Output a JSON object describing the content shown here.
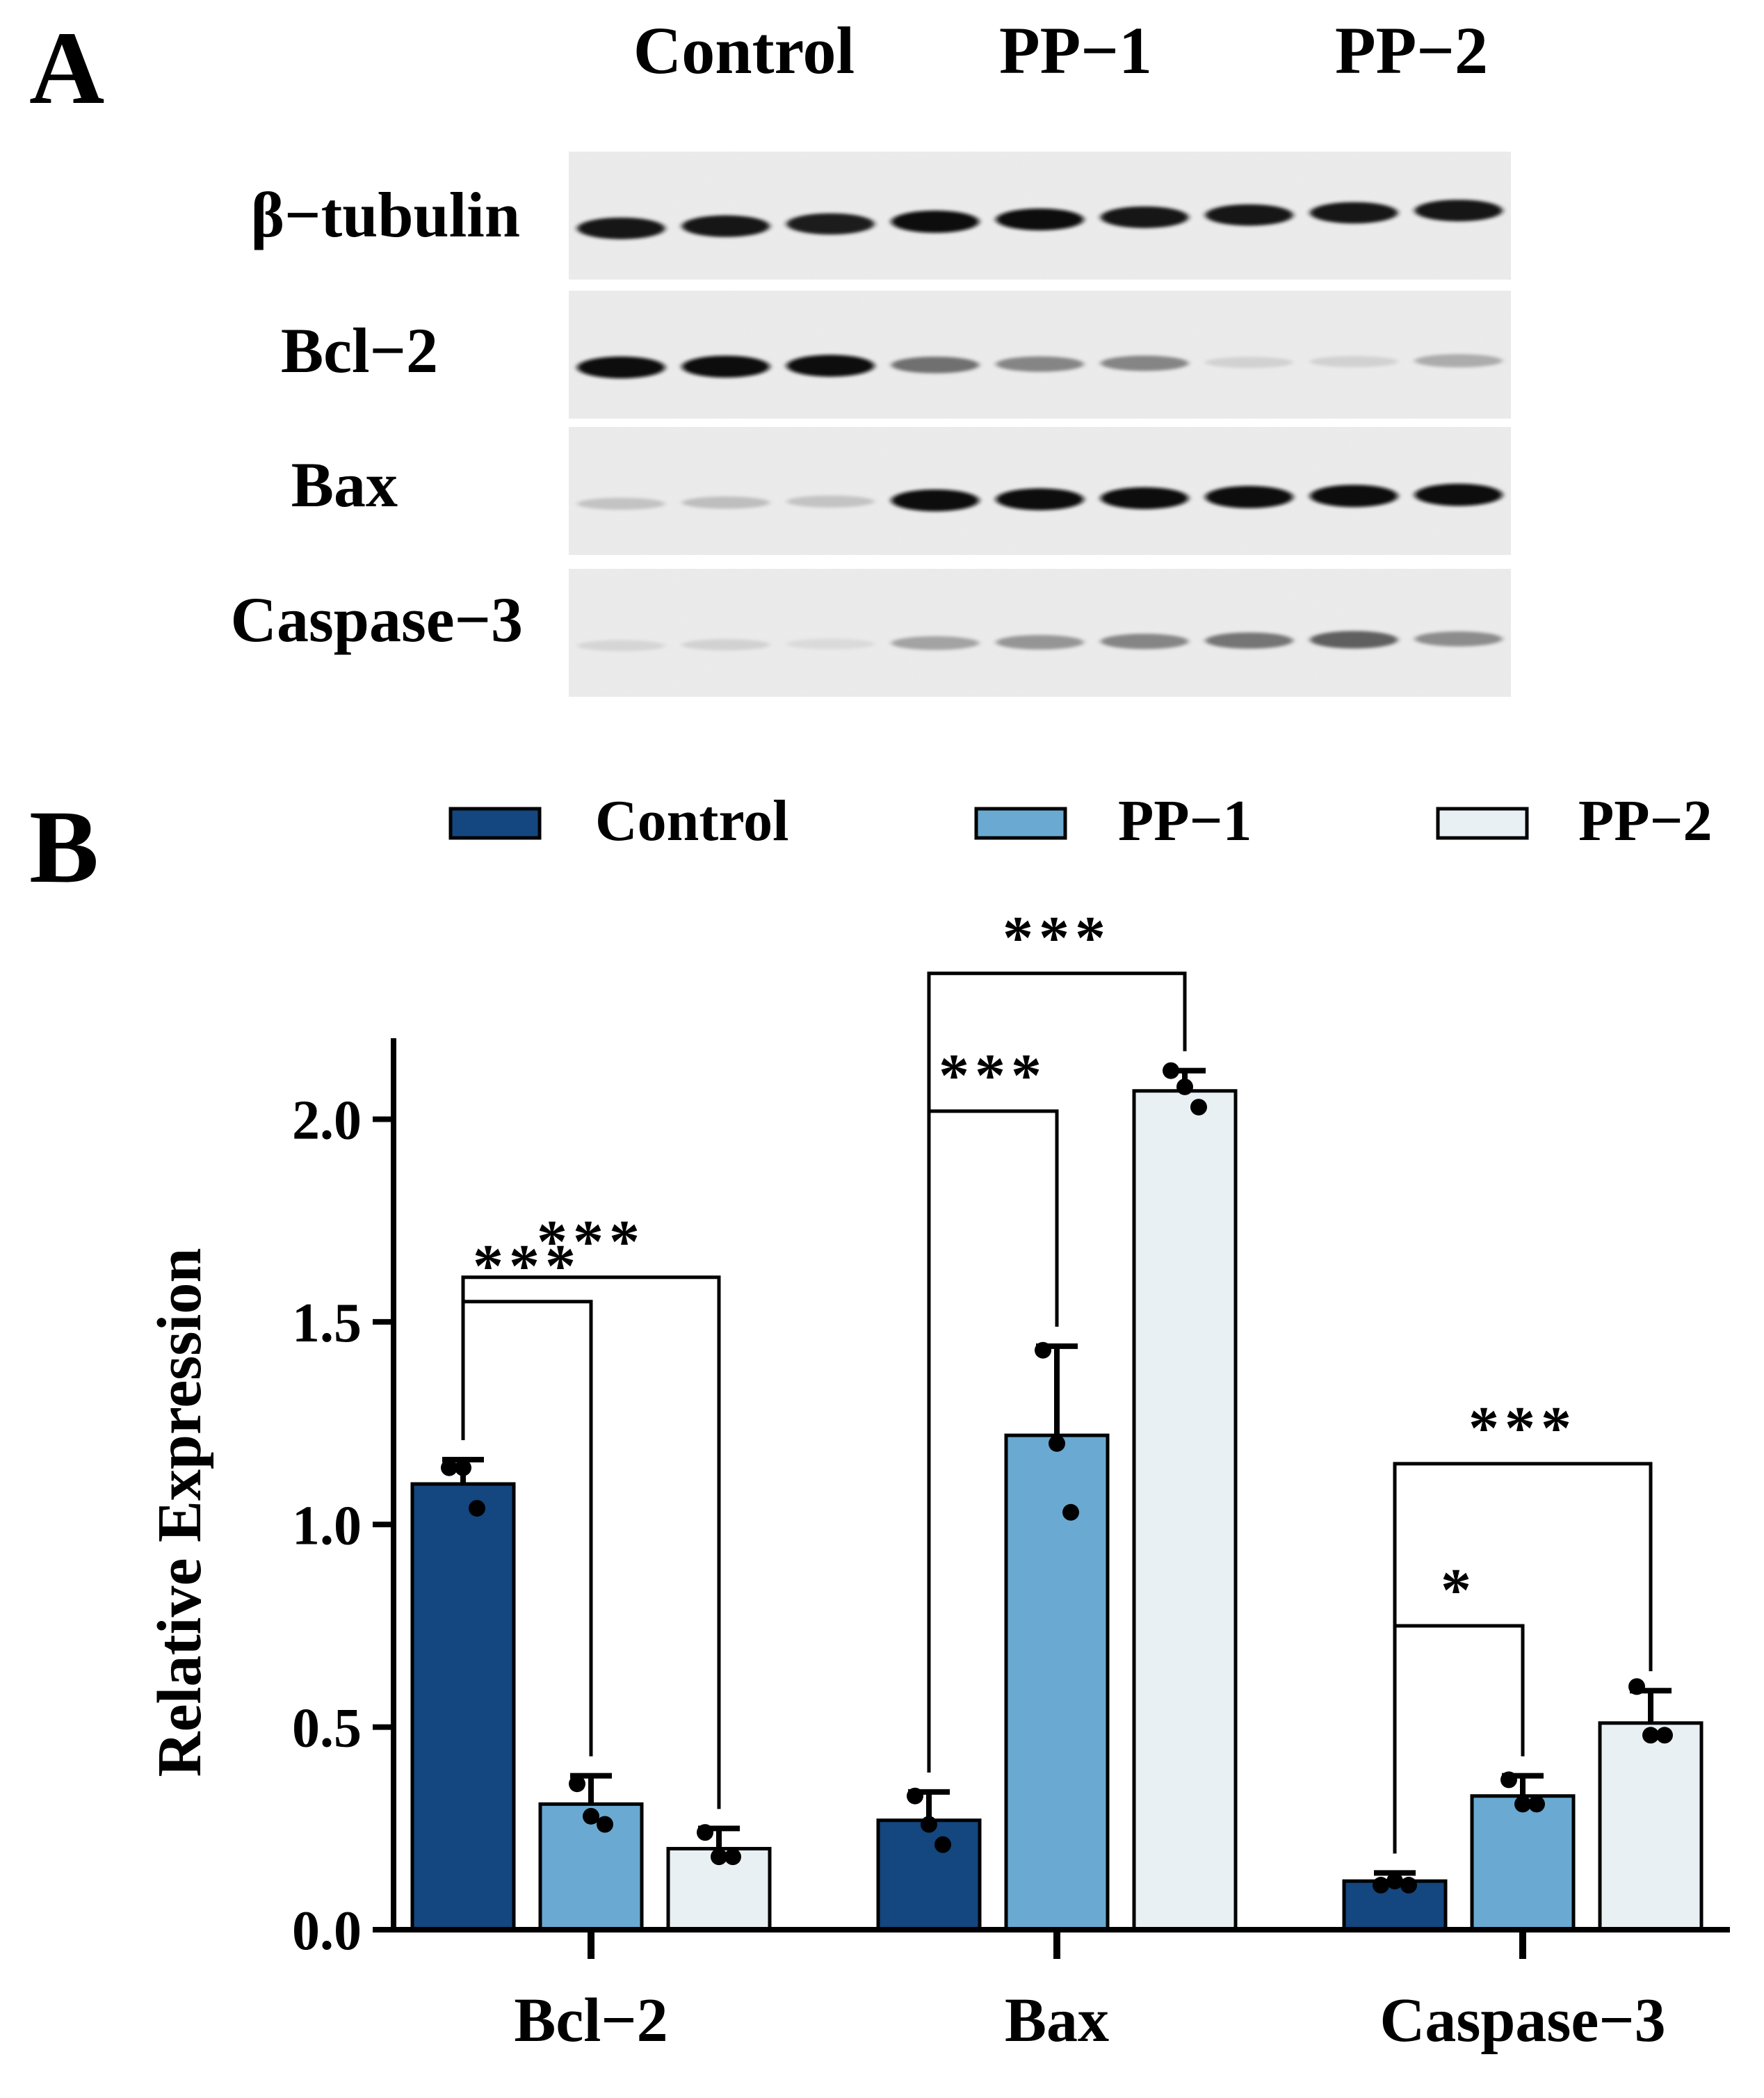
{
  "panel_a": {
    "panel_label": "A",
    "group_labels": [
      "Control",
      "PP−1",
      "PP−2"
    ],
    "blots": [
      {
        "label": "β−tubulin",
        "band_darkness": [
          0.95,
          0.95,
          0.92,
          1.0,
          0.97,
          0.95,
          0.93,
          0.93,
          0.95
        ]
      },
      {
        "label": "Bcl−2",
        "band_darkness": [
          0.97,
          0.97,
          0.97,
          0.55,
          0.45,
          0.45,
          0.12,
          0.12,
          0.28
        ]
      },
      {
        "label": "Bax",
        "band_darkness": [
          0.18,
          0.2,
          0.18,
          0.97,
          0.97,
          0.97,
          1.0,
          1.0,
          1.0
        ]
      },
      {
        "label": "Caspase−3",
        "band_darkness": [
          0.1,
          0.12,
          0.08,
          0.32,
          0.38,
          0.45,
          0.52,
          0.62,
          0.42
        ]
      }
    ]
  },
  "panel_b": {
    "panel_label": "B",
    "legend": [
      {
        "name": "Control",
        "color": "#14467f"
      },
      {
        "name": "PP−1",
        "color": "#6aaad2"
      },
      {
        "name": "PP−2",
        "color": "#e9f0f4"
      }
    ]
  },
  "chart_data": {
    "type": "bar",
    "title": "",
    "xlabel": "",
    "ylabel": "Relative Expression",
    "ylim": [
      0,
      2.2
    ],
    "yticks": [
      0.0,
      0.5,
      1.0,
      1.5,
      2.0
    ],
    "ytick_labels": [
      "0.0",
      "0.5",
      "1.0",
      "1.5",
      "2.0"
    ],
    "grid": false,
    "legend_position": "top",
    "categories": [
      "Bcl−2",
      "Bax",
      "Caspase−3"
    ],
    "series": [
      {
        "name": "Control",
        "color": "#14467f",
        "values": [
          1.1,
          0.27,
          0.12
        ],
        "errors": [
          0.06,
          0.07,
          0.02
        ],
        "points": [
          [
            1.14,
            1.14,
            1.04
          ],
          [
            0.33,
            0.26,
            0.21
          ],
          [
            0.11,
            0.12,
            0.11
          ]
        ]
      },
      {
        "name": "PP−1",
        "color": "#6aaad2",
        "values": [
          0.31,
          1.22,
          0.33
        ],
        "errors": [
          0.07,
          0.22,
          0.05
        ],
        "points": [
          [
            0.36,
            0.28,
            0.26
          ],
          [
            1.43,
            1.2,
            1.03
          ],
          [
            0.37,
            0.31,
            0.31
          ]
        ]
      },
      {
        "name": "PP−2",
        "color": "#e9f0f4",
        "values": [
          0.2,
          2.07,
          0.51
        ],
        "errors": [
          0.05,
          0.05,
          0.08
        ],
        "points": [
          [
            0.24,
            0.18,
            0.18
          ],
          [
            2.12,
            2.08,
            2.03
          ],
          [
            0.6,
            0.48,
            0.48
          ]
        ]
      }
    ],
    "significance": [
      {
        "category": 0,
        "from": 0,
        "to": 1,
        "label": "***"
      },
      {
        "category": 0,
        "from": 0,
        "to": 2,
        "label": "***"
      },
      {
        "category": 1,
        "from": 0,
        "to": 1,
        "label": "***"
      },
      {
        "category": 1,
        "from": 0,
        "to": 2,
        "label": "***"
      },
      {
        "category": 2,
        "from": 0,
        "to": 1,
        "label": "*"
      },
      {
        "category": 2,
        "from": 0,
        "to": 2,
        "label": "***"
      }
    ]
  }
}
